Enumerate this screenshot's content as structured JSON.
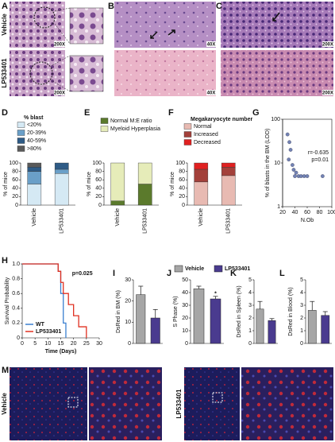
{
  "figure": {
    "panels": [
      "A",
      "B",
      "C",
      "D",
      "E",
      "F",
      "G",
      "H",
      "I",
      "J",
      "K",
      "L",
      "M"
    ],
    "A": {
      "rows": [
        "Vehicle",
        "LP533401"
      ],
      "magnification": [
        "200X",
        "200X"
      ]
    },
    "B": {
      "magnification": [
        "40X",
        "40X"
      ]
    },
    "C": {
      "magnification": [
        "200X",
        "200X"
      ]
    },
    "M": {
      "groups": [
        "Vehicle",
        "LP533401"
      ]
    }
  },
  "chart_data": [
    {
      "type": "stacked_bar",
      "legend_title": "% blast",
      "categories": [
        "Vehicle",
        "LP533401"
      ],
      "y_label": "% of mice",
      "ylim": [
        0,
        100
      ],
      "yticks": [
        0,
        20,
        40,
        60,
        80,
        100
      ],
      "series": [
        {
          "name": "<20%",
          "color": "#d5e9f4",
          "values": [
            50,
            75
          ]
        },
        {
          "name": "20-39%",
          "color": "#6a9fc8",
          "values": [
            30,
            10
          ]
        },
        {
          "name": "40-59%",
          "color": "#2e5b86",
          "values": [
            10,
            15
          ]
        },
        {
          "name": ">80%",
          "color": "#5a5a5a",
          "values": [
            10,
            0
          ]
        }
      ]
    },
    {
      "type": "stacked_bar",
      "categories": [
        "Vehicle",
        "LP533401"
      ],
      "y_label": "% of mice",
      "ylim": [
        0,
        100
      ],
      "yticks": [
        0,
        20,
        40,
        60,
        80,
        100
      ],
      "series": [
        {
          "name": "Normal M:E ratio",
          "color": "#5b7a2c",
          "values": [
            10,
            50
          ]
        },
        {
          "name": "Myeloid Hyperplasia",
          "color": "#e6ecb9",
          "values": [
            90,
            50
          ]
        }
      ]
    },
    {
      "type": "stacked_bar",
      "legend_title": "Megakaryocyte number",
      "categories": [
        "Vehicle",
        "LP533401"
      ],
      "y_label": "% of mice",
      "ylim": [
        0,
        100
      ],
      "yticks": [
        0,
        20,
        40,
        60,
        80,
        100
      ],
      "series": [
        {
          "name": "Normal",
          "color": "#e8bab2",
          "values": [
            55,
            70
          ]
        },
        {
          "name": "Increased",
          "color": "#a3403a",
          "values": [
            30,
            20
          ]
        },
        {
          "name": "Decreased",
          "color": "#e02020",
          "values": [
            15,
            10
          ]
        }
      ]
    },
    {
      "type": "scatter",
      "y_label": "% of blasts in the BM (LOD)",
      "x_label": "N.Ob",
      "log_y": true,
      "xlim": [
        20,
        100
      ],
      "xticks": [
        20,
        40,
        60,
        80,
        100
      ],
      "ylim": [
        1,
        100
      ],
      "yticks": [
        1,
        10,
        100
      ],
      "color": "#7282b4",
      "x": [
        28,
        31,
        33,
        30,
        36,
        38,
        42,
        46,
        50,
        55,
        60,
        85,
        40
      ],
      "values": [
        45,
        30,
        20,
        12,
        9,
        7,
        6,
        5,
        5,
        5,
        5,
        5,
        5
      ],
      "annotations": [
        "r=-0.635",
        "p=0.01"
      ]
    },
    {
      "type": "survival",
      "x_label": "Time (Days)",
      "y_label": "Survival Probability",
      "xlim": [
        0,
        30
      ],
      "xticks": [
        0,
        5,
        10,
        15,
        20,
        25,
        30
      ],
      "ylim": [
        0,
        1
      ],
      "yticks": [
        0,
        0.2,
        0.4,
        0.6,
        0.8,
        {
          "value": 1,
          "label": "1.0"
        }
      ],
      "annotations": [
        "p=0.025"
      ],
      "legend_corner": "lower left",
      "series": [
        {
          "name": "WT",
          "color": "#3a7fd0",
          "x": [
            0,
            14,
            15,
            16,
            17
          ],
          "values": [
            1,
            0.9,
            0.6,
            0.2,
            0
          ]
        },
        {
          "name": "LP533401",
          "color": "#e03020",
          "x": [
            0,
            14,
            15,
            16,
            18,
            20,
            22,
            25
          ],
          "values": [
            1,
            0.9,
            0.75,
            0.6,
            0.45,
            0.3,
            0.15,
            0
          ]
        }
      ]
    },
    {
      "type": "bar",
      "y_label": "DsRed in BM (%)",
      "ylim": [
        0,
        30
      ],
      "yticks": [
        0,
        10,
        20,
        30
      ],
      "values": [
        23,
        12
      ],
      "errors": [
        4,
        4
      ],
      "colors": [
        "#a6a6a6",
        "#4a3b8f"
      ]
    },
    {
      "type": "bar",
      "y_label": "S Phase (%)",
      "ylim": [
        0,
        50
      ],
      "yticks": [
        0,
        10,
        20,
        30,
        40,
        50
      ],
      "values": [
        43,
        35
      ],
      "errors": [
        2,
        2
      ],
      "colors": [
        "#a6a6a6",
        "#4a3b8f"
      ],
      "legend": [
        "Vehicle",
        "LP533401"
      ],
      "annotations": [
        "*"
      ]
    },
    {
      "type": "bar",
      "y_label": "DsRed in Spleen (%)",
      "ylim": [
        0,
        5
      ],
      "yticks": [
        0,
        1,
        2,
        3,
        4,
        5
      ],
      "values": [
        2.7,
        1.8
      ],
      "errors": [
        0.6,
        0.15
      ],
      "colors": [
        "#a6a6a6",
        "#4a3b8f"
      ]
    },
    {
      "type": "bar",
      "y_label": "DsRed in Blood (%)",
      "ylim": [
        0,
        5
      ],
      "yticks": [
        0,
        1,
        2,
        3,
        4,
        5
      ],
      "values": [
        2.6,
        2.2
      ],
      "errors": [
        0.7,
        0.3
      ],
      "colors": [
        "#a6a6a6",
        "#4a3b8f"
      ]
    }
  ]
}
